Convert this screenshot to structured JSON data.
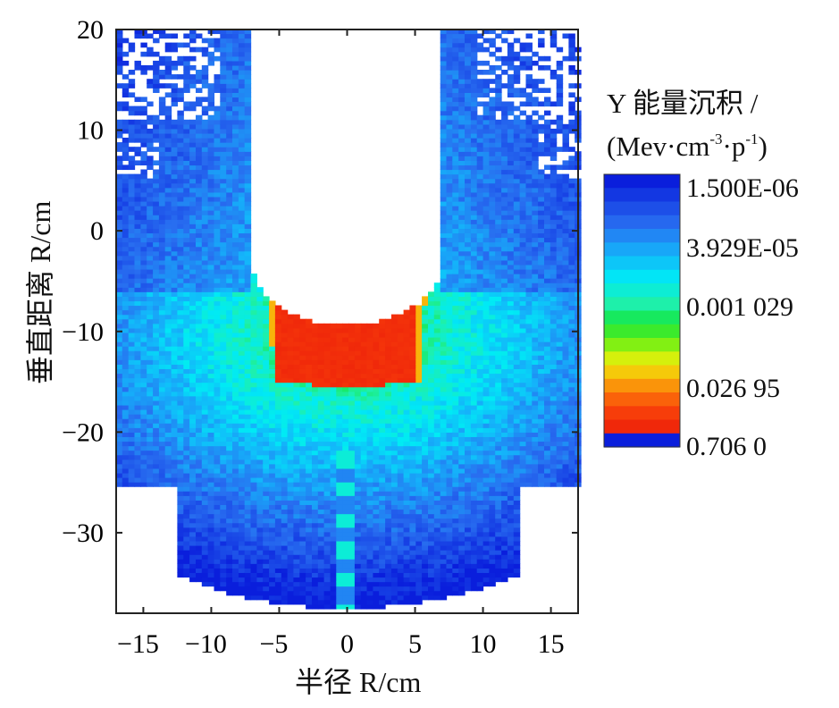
{
  "chart_data": {
    "type": "heatmap",
    "title": "",
    "xlabel": "半径 R/cm",
    "ylabel": "垂直距离 R/cm",
    "xlim": [
      -17,
      17
    ],
    "ylim": [
      -38,
      20
    ],
    "x_ticks": [
      "−15",
      "−10",
      "−5",
      "0",
      "5",
      "10",
      "15"
    ],
    "y_ticks": [
      "20",
      "10",
      "0",
      "−10",
      "−20",
      "−30"
    ],
    "x_tick_values": [
      -15,
      -10,
      -5,
      0,
      5,
      10,
      15
    ],
    "y_tick_values": [
      20,
      10,
      0,
      -10,
      -20,
      -30
    ],
    "colorbar": {
      "title_line1": "Y 能量沉积 /",
      "title_line2_prefix": "(Mev·cm",
      "title_exp1": "-3",
      "title_mid": "·p",
      "title_exp2": "-1",
      "title_suffix": ")",
      "labels": [
        "1.500E-06",
        "3.929E-05",
        "0.001 029",
        "0.026 95",
        "0.706 0"
      ],
      "label_values": [
        1.5e-06,
        3.929e-05,
        0.001029,
        0.02695,
        0.706
      ],
      "scale": "log"
    },
    "regions": {
      "cavity_white": {
        "x_range": [
          -7,
          7
        ],
        "y_top": 20,
        "round_bottom_y": -3
      },
      "source_hot": {
        "x_range": [
          -6,
          6
        ],
        "y_range": [
          -15,
          -6
        ],
        "level": "red (~0.7)"
      },
      "lower_boundary_radius": 25,
      "background_level": "cyan/blue (~1e-5 to 1e-4)"
    }
  }
}
